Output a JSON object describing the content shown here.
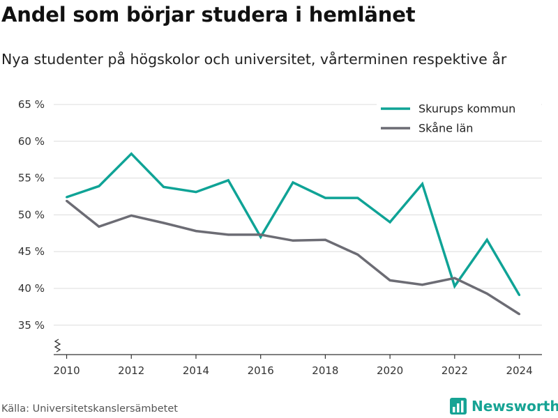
{
  "title": "Andel som börjar studera i hemlänet",
  "subtitle": "Nya studenter på högskolor och universitet, vårterminen respektive år",
  "source": "Källa: Universitetskanslersämbetet",
  "brand": "Newsworthy",
  "colors": {
    "brand": "#16a394",
    "series1": "#0fa396",
    "series2": "#6c6c74"
  },
  "icons": {
    "brand_logo": "bar-chart-icon",
    "axis_break": "axis-break-icon"
  },
  "chart_data": {
    "type": "line",
    "x": [
      2010,
      2011,
      2012,
      2013,
      2014,
      2015,
      2016,
      2017,
      2018,
      2019,
      2020,
      2021,
      2022,
      2023,
      2024
    ],
    "series": [
      {
        "name": "Skurups kommun",
        "color": "#0fa396",
        "values": [
          52.4,
          53.9,
          58.3,
          53.8,
          53.1,
          54.7,
          47.0,
          54.4,
          52.3,
          52.3,
          49.0,
          54.2,
          40.3,
          46.6,
          39.1
        ]
      },
      {
        "name": "Skåne län",
        "color": "#6c6c74",
        "values": [
          51.9,
          48.4,
          49.9,
          48.9,
          47.8,
          47.3,
          47.3,
          46.5,
          46.6,
          44.6,
          41.1,
          40.5,
          41.4,
          39.3,
          36.5
        ]
      }
    ],
    "xticks": [
      "2010",
      "2012",
      "2014",
      "2016",
      "2018",
      "2020",
      "2022",
      "2024"
    ],
    "xtick_values": [
      2010,
      2012,
      2014,
      2016,
      2018,
      2020,
      2022,
      2024
    ],
    "yticks": [
      "35 %",
      "40 %",
      "45 %",
      "50 %",
      "55 %",
      "60 %",
      "65 %"
    ],
    "ytick_values": [
      35,
      40,
      45,
      50,
      55,
      60,
      65
    ],
    "xlim": [
      2009.6,
      2024.7
    ],
    "ylim": [
      31,
      65
    ],
    "grid": true,
    "legend_position": "top-right",
    "y_axis_break": true
  }
}
